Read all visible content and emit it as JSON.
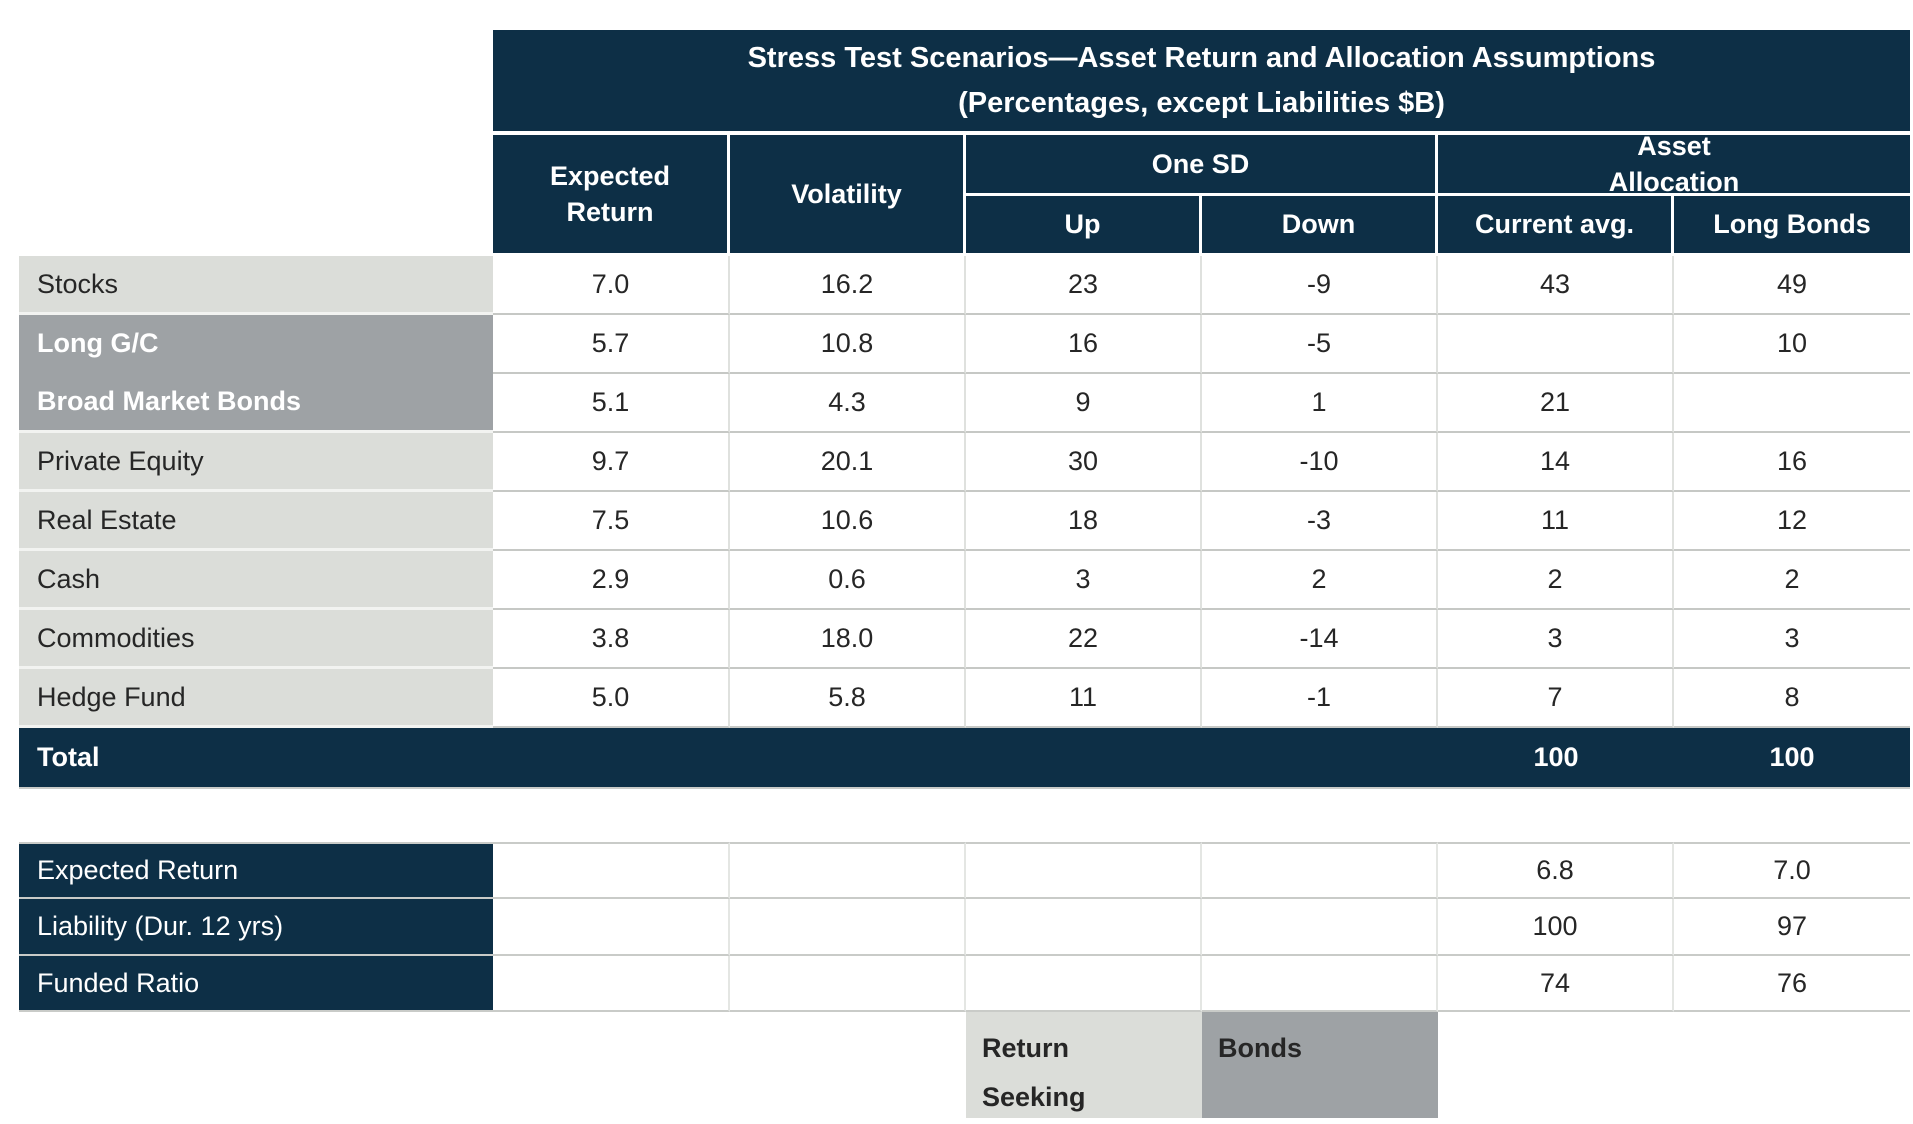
{
  "table": {
    "title_line1": "Stress Test Scenarios—Asset Return and Allocation Assumptions",
    "title_line2": "(Percentages, except Liabilities $B)",
    "col_headers": {
      "expected_return": "Expected Return",
      "volatility": "Volatility",
      "one_sd": "One SD",
      "asset_allocation": "Asset Allocation",
      "up": "Up",
      "down": "Down",
      "current_avg": "Current avg.",
      "long_bonds": "Long Bonds"
    },
    "rows": [
      {
        "label": "Stocks",
        "values": [
          "7.0",
          "16.2",
          "23",
          "-9",
          "43",
          "49"
        ]
      },
      {
        "label": "Long G/C",
        "values": [
          "5.7",
          "10.8",
          "16",
          "-5",
          "",
          "10"
        ]
      },
      {
        "label": "Broad Market Bonds",
        "values": [
          "5.1",
          "4.3",
          "9",
          "1",
          "21",
          ""
        ]
      },
      {
        "label": "Private Equity",
        "values": [
          "9.7",
          "20.1",
          "30",
          "-10",
          "14",
          "16"
        ]
      },
      {
        "label": "Real Estate",
        "values": [
          "7.5",
          "10.6",
          "18",
          "-3",
          "11",
          "12"
        ]
      },
      {
        "label": "Cash",
        "values": [
          "2.9",
          "0.6",
          "3",
          "2",
          "2",
          "2"
        ]
      },
      {
        "label": "Commodities",
        "values": [
          "3.8",
          "18.0",
          "22",
          "-14",
          "3",
          "3"
        ]
      },
      {
        "label": "Hedge Fund",
        "values": [
          "5.0",
          "5.8",
          "11",
          "-1",
          "7",
          "8"
        ]
      }
    ],
    "total_row": {
      "label": "Total",
      "current_avg": "100",
      "long_bonds": "100"
    },
    "summary_rows": [
      {
        "label": "Expected Return",
        "current_avg": "6.8",
        "long_bonds": "7.0"
      },
      {
        "label": "Liability (Dur. 12 yrs)",
        "current_avg": "100",
        "long_bonds": "97"
      },
      {
        "label": "Funded Ratio",
        "current_avg": "74",
        "long_bonds": "76"
      }
    ],
    "legend": {
      "return_seeking": "Return Seeking",
      "bonds": "Bonds"
    }
  },
  "colors": {
    "navy": "#0d2f46",
    "light_gray": "#dbddd9",
    "dark_gray": "#9ea2a5",
    "row_line": "#c6c8c5",
    "text": "#262626",
    "white": "#ffffff"
  },
  "chart_data": {
    "type": "table",
    "title": "Stress Test Scenarios—Asset Return and Allocation Assumptions (Percentages, except Liabilities $B)",
    "columns": [
      "Expected Return",
      "Volatility",
      "One SD Up",
      "One SD Down",
      "Asset Allocation Current avg.",
      "Asset Allocation Long Bonds"
    ],
    "rows": [
      {
        "label": "Stocks",
        "expected_return": 7.0,
        "volatility": 16.2,
        "one_sd_up": 23,
        "one_sd_down": -9,
        "alloc_current_avg": 43,
        "alloc_long_bonds": 49
      },
      {
        "label": "Long G/C",
        "expected_return": 5.7,
        "volatility": 10.8,
        "one_sd_up": 16,
        "one_sd_down": -5,
        "alloc_current_avg": null,
        "alloc_long_bonds": 10
      },
      {
        "label": "Broad Market Bonds",
        "expected_return": 5.1,
        "volatility": 4.3,
        "one_sd_up": 9,
        "one_sd_down": 1,
        "alloc_current_avg": 21,
        "alloc_long_bonds": null
      },
      {
        "label": "Private Equity",
        "expected_return": 9.7,
        "volatility": 20.1,
        "one_sd_up": 30,
        "one_sd_down": -10,
        "alloc_current_avg": 14,
        "alloc_long_bonds": 16
      },
      {
        "label": "Real Estate",
        "expected_return": 7.5,
        "volatility": 10.6,
        "one_sd_up": 18,
        "one_sd_down": -3,
        "alloc_current_avg": 11,
        "alloc_long_bonds": 12
      },
      {
        "label": "Cash",
        "expected_return": 2.9,
        "volatility": 0.6,
        "one_sd_up": 3,
        "one_sd_down": 2,
        "alloc_current_avg": 2,
        "alloc_long_bonds": 2
      },
      {
        "label": "Commodities",
        "expected_return": 3.8,
        "volatility": 18.0,
        "one_sd_up": 22,
        "one_sd_down": -14,
        "alloc_current_avg": 3,
        "alloc_long_bonds": 3
      },
      {
        "label": "Hedge Fund",
        "expected_return": 5.0,
        "volatility": 5.8,
        "one_sd_up": 11,
        "one_sd_down": -1,
        "alloc_current_avg": 7,
        "alloc_long_bonds": 8
      }
    ],
    "total": {
      "alloc_current_avg": 100,
      "alloc_long_bonds": 100
    },
    "summary": [
      {
        "label": "Expected Return",
        "current_avg": 6.8,
        "long_bonds": 7.0
      },
      {
        "label": "Liability (Dur. 12 yrs)",
        "current_avg": 100,
        "long_bonds": 97
      },
      {
        "label": "Funded Ratio",
        "current_avg": 74,
        "long_bonds": 76
      }
    ],
    "legend": [
      {
        "label": "Return Seeking",
        "color": "#dbddd9"
      },
      {
        "label": "Bonds",
        "color": "#9ea2a5"
      }
    ]
  }
}
